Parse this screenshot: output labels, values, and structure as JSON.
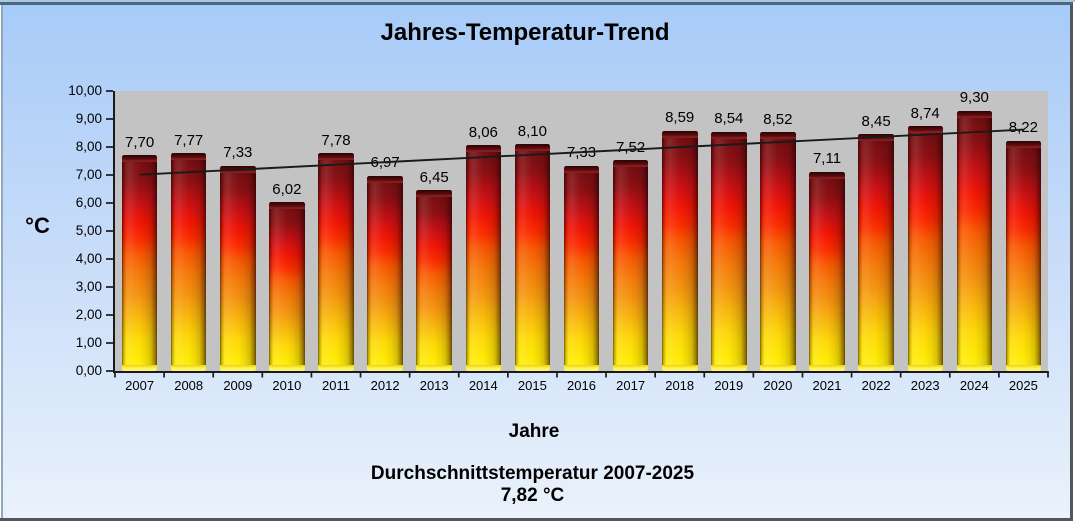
{
  "chart_data": {
    "type": "bar",
    "title": "Jahres-Temperatur-Trend",
    "categories": [
      "2007",
      "2008",
      "2009",
      "2010",
      "2011",
      "2012",
      "2013",
      "2014",
      "2015",
      "2016",
      "2017",
      "2018",
      "2019",
      "2020",
      "2021",
      "2022",
      "2023",
      "2024",
      "2025"
    ],
    "values": [
      7.7,
      7.77,
      7.33,
      6.02,
      7.78,
      6.97,
      6.45,
      8.06,
      8.1,
      7.33,
      7.52,
      8.59,
      8.54,
      8.52,
      7.11,
      8.45,
      8.74,
      9.3,
      8.22
    ],
    "value_labels": [
      "7,70",
      "7,77",
      "7,33",
      "6,02",
      "7,78",
      "6,97",
      "6,45",
      "8,06",
      "8,10",
      "7,33",
      "7,52",
      "8,59",
      "8,54",
      "8,52",
      "7,11",
      "8,45",
      "8,74",
      "9,30",
      "8,22"
    ],
    "xlabel": "Jahre",
    "ylabel": "°C",
    "ylim": [
      0,
      10
    ],
    "ytick_step": 1,
    "ytick_labels": [
      "0,00",
      "1,00",
      "2,00",
      "3,00",
      "4,00",
      "5,00",
      "6,00",
      "7,00",
      "8,00",
      "9,00",
      "10,00"
    ],
    "grid": false,
    "legend": false,
    "trendline": {
      "type": "linear",
      "slope": 0.089421,
      "intercept": 6.921579,
      "color": "#1a1a1a"
    },
    "footer_line1": "Durchschnittstemperatur 2007-2025",
    "footer_line2": "7,82 °C",
    "colors": {
      "plot_bg": "#c3c3c3",
      "chart_bg_top": "#a7cbf8",
      "chart_bg_bottom": "#eaf2fb",
      "bar_gradient": [
        "#731012",
        "#a61115",
        "#e91310",
        "#f1660b",
        "#fbc60c",
        "#fff23e"
      ],
      "axis": "#1a1a1a",
      "text": "#000000"
    }
  }
}
